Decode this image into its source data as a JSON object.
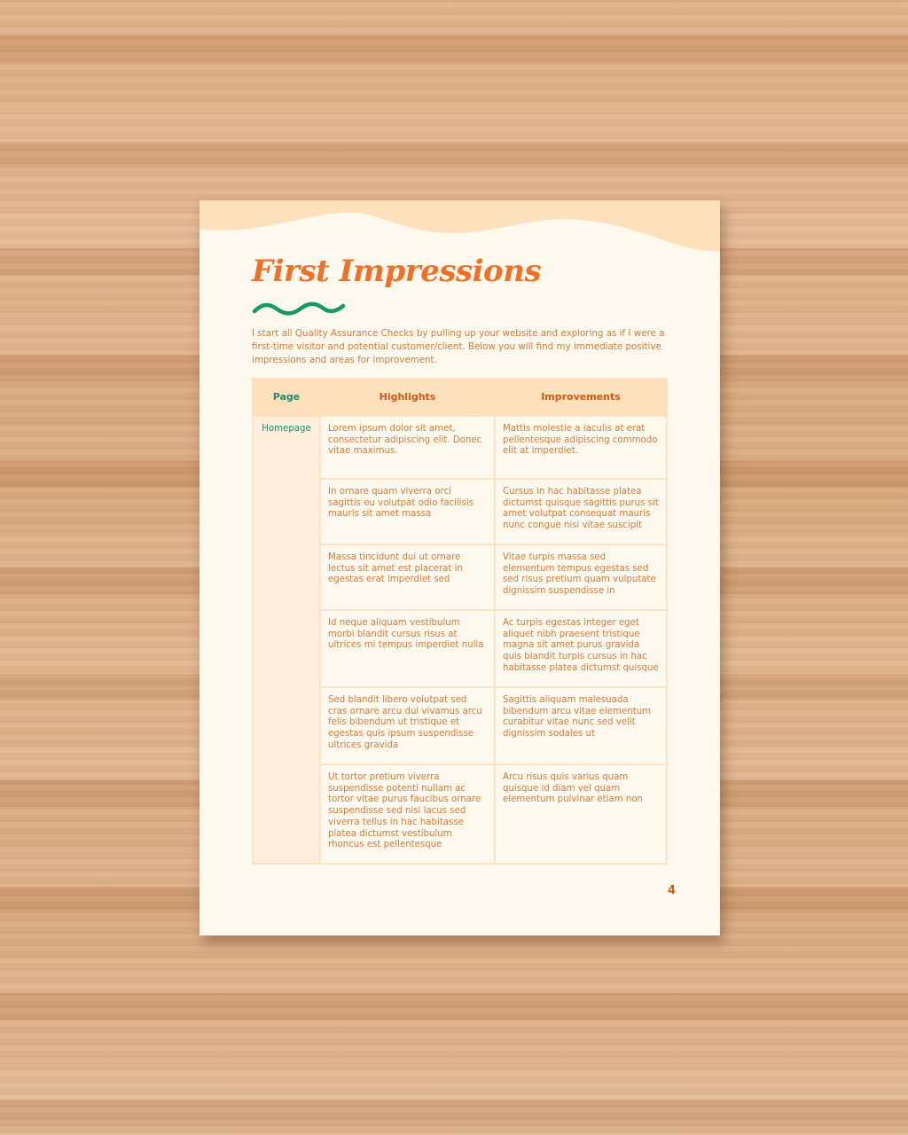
{
  "page": {
    "title": "First Impressions",
    "intro": "I start all Quality Assurance Checks by pulling up your website and exploring as if I were a first-time visitor and potential customer/client. Below you will find my immediate positive impressions and areas for improvement.",
    "page_number": "4",
    "colors": {
      "accent": "#f07025",
      "green": "#1d8c6c",
      "header_bg": "#fde1bd",
      "paper": "#fdf9ee"
    }
  },
  "table": {
    "headers": [
      "Page",
      "Highlights",
      "Improvements"
    ],
    "page_label": "Homepage",
    "rows": [
      {
        "highlight": "Lorem ipsum dolor sit amet, consectetur adipiscing elit. Donec vitae maximus.",
        "improvement": "Mattis molestie a iaculis at erat pellentesque adipiscing commodo elit at imperdiet."
      },
      {
        "highlight": "In ornare quam viverra orci sagittis eu volutpat odio facilisis mauris sit amet massa",
        "improvement": "Cursus in hac habitasse platea dictumst quisque sagittis purus sit amet volutpat consequat mauris nunc congue nisi vitae suscipit"
      },
      {
        "highlight": "Massa tincidunt dui ut ornare lectus sit amet est placerat in egestas erat imperdiet sed",
        "improvement": "Vitae turpis massa sed elementum tempus egestas sed sed risus pretium quam vulputate dignissim suspendisse in"
      },
      {
        "highlight": "Id neque aliquam vestibulum morbi blandit cursus risus at ultrices mi tempus imperdiet nulla",
        "improvement": "Ac turpis egestas integer eget aliquet nibh praesent tristique magna sit amet purus gravida quis blandit turpis cursus in hac habitasse platea dictumst quisque"
      },
      {
        "highlight": "Sed blandit libero volutpat sed cras ornare arcu dui vivamus arcu felis bibendum ut tristique et egestas quis ipsum suspendisse ultrices gravida",
        "improvement": "Sagittis aliquam malesuada bibendum arcu vitae elementum curabitur vitae nunc sed velit dignissim sodales ut"
      },
      {
        "highlight": "Ut tortor pretium viverra suspendisse potenti nullam ac tortor vitae purus faucibus ornare suspendisse sed nisi lacus sed viverra tellus in hac habitasse platea dictumst vestibulum rhoncus est pellentesque",
        "improvement": "Arcu risus quis varius quam quisque id diam vel quam elementum pulvinar etiam non"
      }
    ]
  }
}
